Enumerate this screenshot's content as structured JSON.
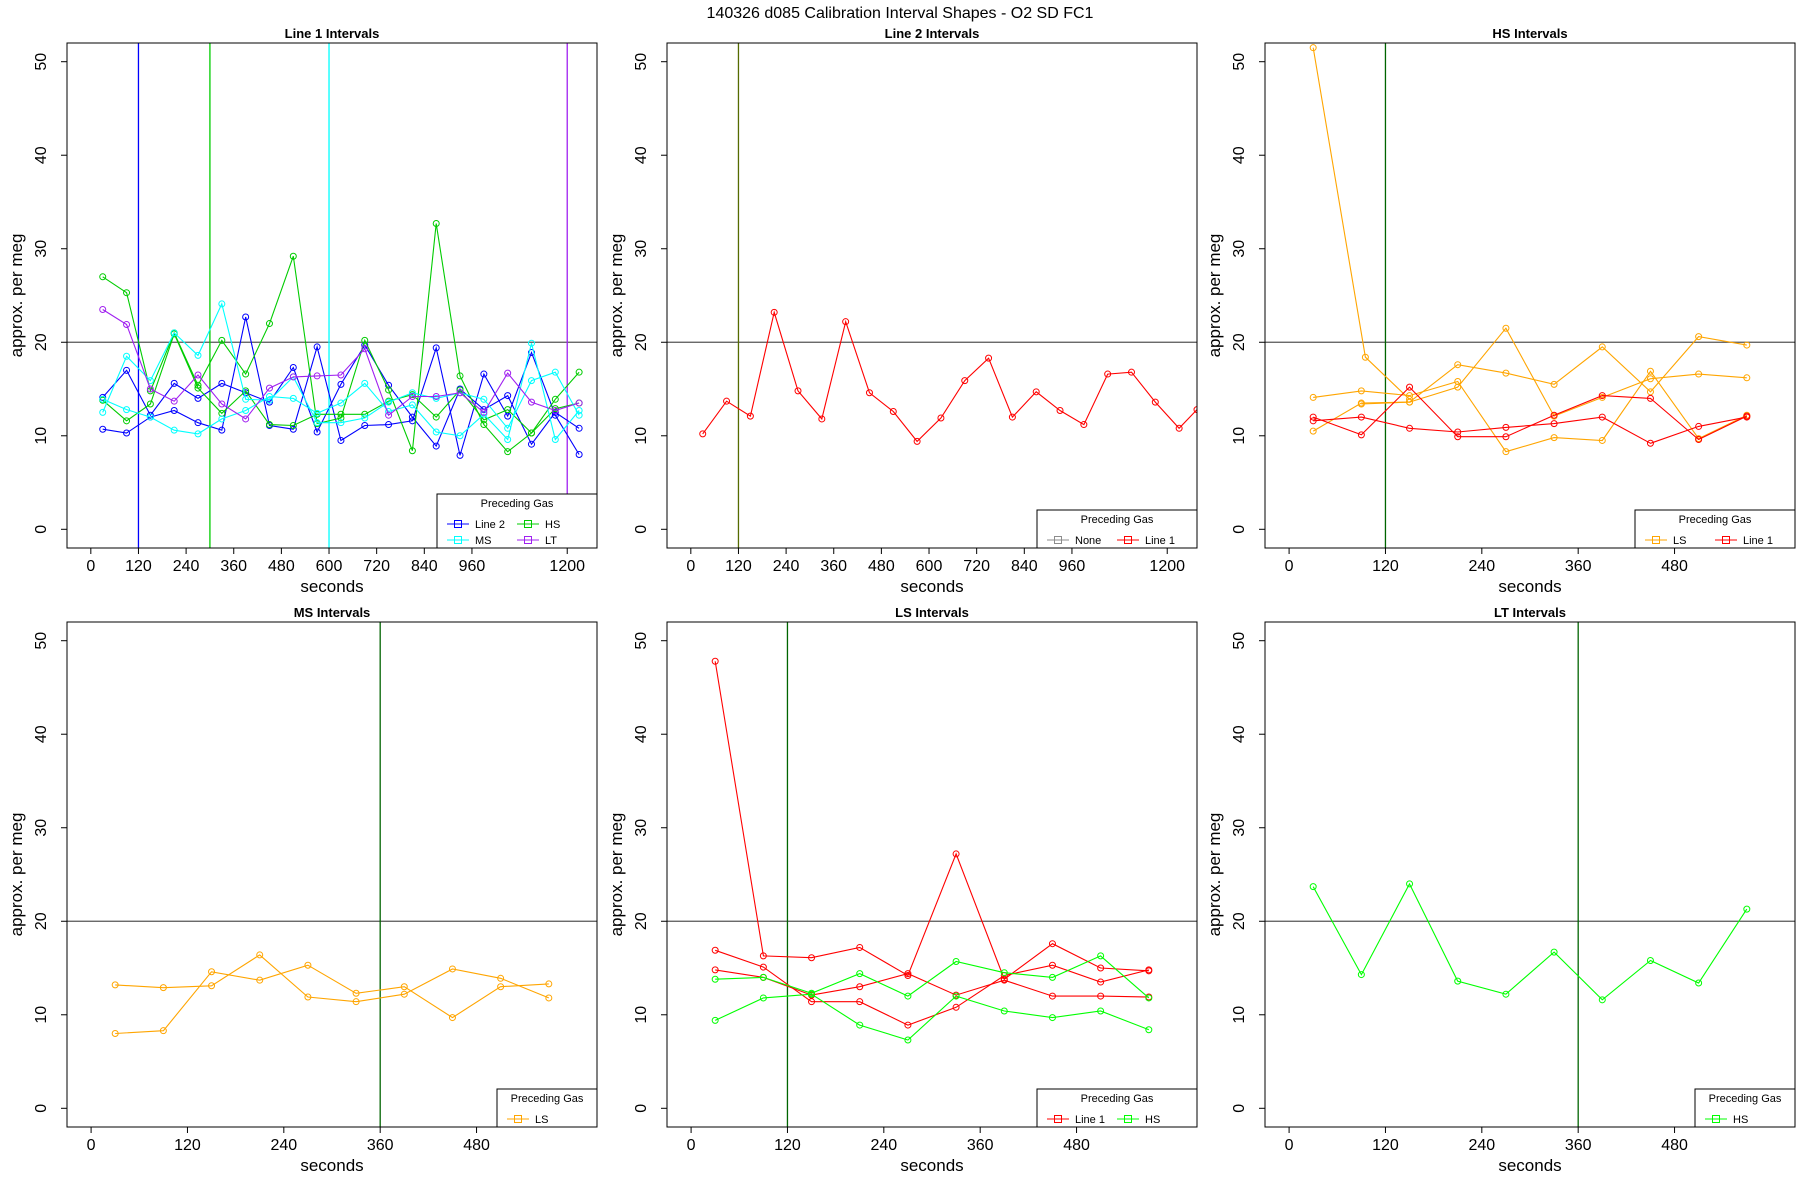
{
  "figure": {
    "title": "140326   d085   Calibration Interval Shapes - O2 SD FC1"
  },
  "chart_data": [
    {
      "type": "line",
      "title": "Line 1 Intervals",
      "xlabel": "seconds",
      "ylabel": "approx. per meg",
      "xlim": [
        -60,
        1275
      ],
      "ylim": [
        -2,
        52
      ],
      "xticks": [
        0,
        120,
        240,
        360,
        480,
        600,
        720,
        840,
        960,
        1200
      ],
      "yticks": [
        0,
        10,
        20,
        30,
        40,
        50
      ],
      "hline": 20,
      "vlines": [
        {
          "x": 120,
          "color": "#0000ff"
        },
        {
          "x": 300,
          "color": "#00cc00"
        },
        {
          "x": 600,
          "color": "#00ffff"
        },
        {
          "x": 1200,
          "color": "#a020f0"
        }
      ],
      "legend": {
        "title": "Preceding Gas",
        "position": "bottom-right",
        "columns": 2
      },
      "series": [
        {
          "name": "Line 2",
          "color": "#0000ff",
          "x": [
            30,
            90,
            150,
            210,
            270,
            330,
            390,
            450,
            510,
            570,
            630,
            690,
            750,
            810,
            870,
            930,
            990,
            1050,
            1110,
            1170,
            1230
          ],
          "y": [
            10.7,
            10.3,
            12.0,
            12.7,
            11.4,
            10.6,
            22.7,
            11.1,
            10.7,
            19.5,
            9.5,
            11.1,
            11.2,
            11.6,
            19.4,
            7.9,
            16.6,
            12.1,
            18.9,
            12.2,
            8.0
          ]
        },
        {
          "name": "Line 2",
          "color": "#0000ff",
          "x": [
            30,
            90,
            150,
            210,
            270,
            330,
            390,
            450,
            510,
            570,
            630,
            690,
            750,
            810,
            870,
            930,
            990,
            1050,
            1110,
            1170,
            1230
          ],
          "y": [
            14.1,
            17.0,
            12.2,
            15.6,
            14.0,
            15.6,
            14.6,
            13.6,
            17.3,
            10.4,
            15.5,
            19.7,
            15.4,
            12.0,
            8.9,
            15.0,
            12.8,
            14.3,
            9.1,
            12.5,
            10.8
          ]
        },
        {
          "name": "HS",
          "color": "#00cc00",
          "x": [
            30,
            90,
            150,
            210,
            270,
            330,
            390,
            450,
            510,
            570,
            630,
            690,
            750,
            810,
            870,
            930,
            990,
            1050,
            1110,
            1170,
            1230
          ],
          "y": [
            27.0,
            25.3,
            14.8,
            21.0,
            15.4,
            20.2,
            16.6,
            22.0,
            29.2,
            11.3,
            11.9,
            20.2,
            14.9,
            8.4,
            32.7,
            16.4,
            11.2,
            8.3,
            10.3,
            13.9,
            16.8
          ]
        },
        {
          "name": "HS",
          "color": "#00cc00",
          "x": [
            30,
            90,
            150,
            210,
            270,
            330,
            390,
            450,
            510,
            570,
            630,
            690,
            750,
            810,
            870,
            930,
            990,
            1050,
            1110,
            1170,
            1230
          ],
          "y": [
            13.8,
            11.6,
            13.4,
            20.9,
            15.1,
            12.4,
            14.8,
            11.2,
            11.1,
            12.3,
            12.3,
            12.3,
            13.7,
            14.4,
            12.0,
            14.9,
            11.7,
            12.8,
            10.3,
            12.9,
            13.5
          ]
        },
        {
          "name": "MS",
          "color": "#00ffff",
          "x": [
            30,
            90,
            150,
            210,
            270,
            330,
            390,
            450,
            510,
            570,
            630,
            690,
            750,
            810,
            870,
            930,
            990,
            1050,
            1110,
            1170,
            1230
          ],
          "y": [
            12.5,
            18.5,
            15.9,
            21.0,
            18.6,
            24.1,
            13.9,
            13.8,
            16.3,
            11.4,
            11.4,
            11.9,
            13.6,
            14.6,
            14.0,
            14.6,
            13.9,
            10.8,
            15.9,
            16.8,
            12.2
          ]
        },
        {
          "name": "MS",
          "color": "#00ffff",
          "x": [
            30,
            90,
            150,
            210,
            270,
            330,
            390,
            450,
            510,
            570,
            630,
            690,
            750,
            810,
            870,
            930,
            990,
            1050,
            1110,
            1170,
            1230
          ],
          "y": [
            13.9,
            12.8,
            12.0,
            10.6,
            10.2,
            11.8,
            12.7,
            14.2,
            14.0,
            12.4,
            13.5,
            15.6,
            12.6,
            13.3,
            10.4,
            10.0,
            12.3,
            9.6,
            19.9,
            9.6,
            12.7
          ]
        },
        {
          "name": "LT",
          "color": "#a020f0",
          "x": [
            30,
            90,
            150,
            210,
            270,
            330,
            390,
            450,
            510,
            570,
            630,
            690,
            750,
            810,
            870,
            930,
            990,
            1050,
            1110,
            1170,
            1230
          ],
          "y": [
            23.5,
            21.9,
            15.0,
            13.7,
            16.5,
            13.4,
            11.8,
            15.1,
            16.3,
            16.4,
            16.5,
            19.3,
            12.2,
            14.2,
            14.2,
            14.6,
            12.5,
            16.7,
            13.6,
            12.7,
            13.5
          ]
        }
      ]
    },
    {
      "type": "line",
      "title": "Line 2 Intervals",
      "xlabel": "seconds",
      "ylabel": "approx. per meg",
      "xlim": [
        -60,
        1275
      ],
      "ylim": [
        -2,
        52
      ],
      "xticks": [
        0,
        120,
        240,
        360,
        480,
        600,
        720,
        840,
        960,
        1200
      ],
      "yticks": [
        0,
        10,
        20,
        30,
        40,
        50
      ],
      "hline": 20,
      "vlines": [
        {
          "x": 120,
          "color": "#556b00"
        }
      ],
      "legend": {
        "title": "Preceding Gas",
        "position": "bottom-right",
        "columns": 2
      },
      "legend_entries": [
        {
          "name": "None",
          "color": "#8c8c8c"
        },
        {
          "name": "Line 1",
          "color": "#ff0000"
        }
      ],
      "series": [
        {
          "name": "Line 1",
          "color": "#ff0000",
          "x": [
            30,
            90,
            150,
            210,
            270,
            330,
            390,
            450,
            510,
            570,
            630,
            690,
            750,
            810,
            870,
            930,
            990,
            1050,
            1110,
            1170,
            1230,
            1275
          ],
          "y": [
            10.2,
            13.7,
            12.1,
            23.2,
            14.8,
            11.8,
            22.2,
            14.6,
            12.6,
            9.4,
            11.9,
            15.9,
            18.3,
            12.0,
            14.7,
            12.7,
            11.2,
            16.6,
            16.8,
            13.6,
            10.8,
            12.8
          ]
        }
      ]
    },
    {
      "type": "line",
      "title": "HS Intervals",
      "xlabel": "seconds",
      "ylabel": "approx. per meg",
      "xlim": [
        -30,
        630
      ],
      "ylim": [
        -2,
        52
      ],
      "xticks": [
        0,
        120,
        240,
        360,
        480
      ],
      "yticks": [
        0,
        10,
        20,
        30,
        40,
        50
      ],
      "hline": 20,
      "vlines": [
        {
          "x": 120,
          "color": "#006400"
        }
      ],
      "legend": {
        "title": "Preceding Gas",
        "position": "bottom-right",
        "columns": 2
      },
      "series": [
        {
          "name": "LS",
          "color": "#ffa500",
          "x": [
            30,
            95,
            150
          ],
          "y": [
            51.5,
            18.4,
            13.9
          ]
        },
        {
          "name": "LS",
          "color": "#ffa500",
          "x": [
            30,
            90,
            150,
            210,
            270,
            330,
            390,
            450,
            510,
            570
          ],
          "y": [
            14.1,
            14.8,
            14.3,
            15.8,
            8.3,
            9.8,
            9.5,
            16.9,
            9.7,
            12.2
          ]
        },
        {
          "name": "LS",
          "color": "#ffa500",
          "x": [
            30,
            90,
            150,
            210,
            270,
            330,
            390,
            450,
            510,
            570
          ],
          "y": [
            10.5,
            13.5,
            13.6,
            17.6,
            16.7,
            15.5,
            19.5,
            14.7,
            20.6,
            19.7
          ]
        },
        {
          "name": "LS",
          "color": "#ffa500",
          "x": [
            90,
            150,
            210,
            270,
            330,
            390,
            450,
            510,
            570
          ],
          "y": [
            13.4,
            13.6,
            15.2,
            21.5,
            12.1,
            14.1,
            16.1,
            16.6,
            16.2
          ]
        },
        {
          "name": "Line 1",
          "color": "#ff0000",
          "x": [
            30,
            90,
            150,
            210,
            270,
            330,
            390,
            450,
            510,
            570
          ],
          "y": [
            11.6,
            12.0,
            10.8,
            10.4,
            10.9,
            11.3,
            12.0,
            9.2,
            11.0,
            12.0
          ]
        },
        {
          "name": "Line 1",
          "color": "#ff0000",
          "x": [
            30,
            90,
            150,
            210,
            270,
            330,
            390,
            450,
            510,
            570
          ],
          "y": [
            12.0,
            10.1,
            15.2,
            9.9,
            9.9,
            12.2,
            14.3,
            14.0,
            9.6,
            12.1
          ]
        }
      ]
    },
    {
      "type": "line",
      "title": "MS Intervals",
      "xlabel": "seconds",
      "ylabel": "approx. per meg",
      "xlim": [
        -30,
        630
      ],
      "ylim": [
        -2,
        52
      ],
      "xticks": [
        0,
        120,
        240,
        360,
        480
      ],
      "yticks": [
        0,
        10,
        20,
        30,
        40,
        50
      ],
      "hline": 20,
      "vlines": [
        {
          "x": 360,
          "color": "#006400"
        }
      ],
      "legend": {
        "title": "Preceding Gas",
        "position": "bottom-right",
        "columns": 1
      },
      "series": [
        {
          "name": "LS",
          "color": "#ffa500",
          "x": [
            30,
            90,
            150,
            210,
            270,
            330,
            390,
            450,
            510,
            570
          ],
          "y": [
            13.2,
            12.9,
            13.1,
            16.4,
            11.9,
            11.4,
            12.2,
            14.9,
            13.9,
            11.8
          ]
        },
        {
          "name": "LS",
          "color": "#ffa500",
          "x": [
            30,
            90,
            150,
            210,
            270,
            330,
            390,
            450,
            510,
            570
          ],
          "y": [
            8.0,
            8.3,
            14.6,
            13.7,
            15.3,
            12.3,
            13.0,
            9.7,
            13.0,
            13.3
          ]
        }
      ]
    },
    {
      "type": "line",
      "title": "LS Intervals",
      "xlabel": "seconds",
      "ylabel": "approx. per meg",
      "xlim": [
        -30,
        630
      ],
      "ylim": [
        -2,
        52
      ],
      "xticks": [
        0,
        120,
        240,
        360,
        480
      ],
      "yticks": [
        0,
        10,
        20,
        30,
        40,
        50
      ],
      "hline": 20,
      "vlines": [
        {
          "x": 120,
          "color": "#006400"
        }
      ],
      "legend": {
        "title": "Preceding Gas",
        "position": "bottom-right",
        "columns": 2
      },
      "series": [
        {
          "name": "Line 1",
          "color": "#ff0000",
          "x": [
            30,
            90,
            150,
            210,
            270,
            330,
            390,
            450,
            510,
            570
          ],
          "y": [
            47.8,
            16.3,
            16.1,
            17.2,
            14.2,
            27.2,
            13.8,
            17.6,
            15.0,
            14.7
          ]
        },
        {
          "name": "Line 1",
          "color": "#ff0000",
          "x": [
            30,
            90,
            150,
            210,
            270,
            330,
            390,
            450,
            510,
            570
          ],
          "y": [
            16.9,
            15.1,
            11.4,
            11.4,
            8.9,
            10.8,
            14.2,
            15.3,
            13.5,
            14.8
          ]
        },
        {
          "name": "Line 1",
          "color": "#ff0000",
          "x": [
            30,
            90,
            150,
            210,
            270,
            330,
            390,
            450,
            510,
            570
          ],
          "y": [
            14.8,
            14.0,
            12.1,
            13.0,
            14.4,
            12.1,
            13.7,
            12.0,
            12.0,
            11.9
          ]
        },
        {
          "name": "HS",
          "color": "#00ff00",
          "x": [
            30,
            90,
            150,
            210,
            270,
            330,
            390,
            450,
            510,
            570
          ],
          "y": [
            13.8,
            14.0,
            12.3,
            14.4,
            12.0,
            15.7,
            14.5,
            14.0,
            16.3,
            11.8
          ]
        },
        {
          "name": "HS",
          "color": "#00ff00",
          "x": [
            30,
            90,
            150,
            210,
            270,
            330,
            390,
            450,
            510,
            570
          ],
          "y": [
            9.4,
            11.8,
            12.2,
            8.9,
            7.3,
            12.0,
            10.4,
            9.7,
            10.4,
            8.4
          ]
        }
      ]
    },
    {
      "type": "line",
      "title": "LT Intervals",
      "xlabel": "seconds",
      "ylabel": "approx. per meg",
      "xlim": [
        -30,
        630
      ],
      "ylim": [
        -2,
        52
      ],
      "xticks": [
        0,
        120,
        240,
        360,
        480
      ],
      "yticks": [
        0,
        10,
        20,
        30,
        40,
        50
      ],
      "hline": 20,
      "vlines": [
        {
          "x": 360,
          "color": "#006400"
        }
      ],
      "legend": {
        "title": "Preceding Gas",
        "position": "bottom-right",
        "columns": 1
      },
      "series": [
        {
          "name": "HS",
          "color": "#00ff00",
          "x": [
            30,
            90,
            150,
            210,
            270,
            330,
            390,
            450,
            510,
            570
          ],
          "y": [
            23.7,
            14.3,
            24.0,
            13.6,
            12.2,
            16.7,
            11.6,
            15.8,
            13.4,
            21.3
          ]
        }
      ]
    }
  ]
}
